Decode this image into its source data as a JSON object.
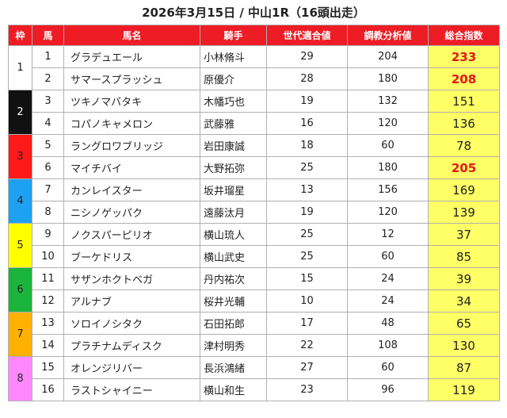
{
  "title": "2026年3月15日 / 中山1R（16頭出走）",
  "colors": {
    "header_bg": "#ee1c25",
    "score_bg": "#ffff66",
    "score_highlight": "#e8151b"
  },
  "headers": [
    "枠",
    "馬",
    "馬名",
    "騎手",
    "世代適合値",
    "調教分析値",
    "総合指数"
  ],
  "waku": [
    {
      "label": "1",
      "color": "#ffffff",
      "text_color": "#222222"
    },
    {
      "label": "2",
      "color": "#111111",
      "text_color": "#ffffff"
    },
    {
      "label": "3",
      "color": "#ff1a1a",
      "text_color": "#222222"
    },
    {
      "label": "4",
      "color": "#1ea1f2",
      "text_color": "#222222"
    },
    {
      "label": "5",
      "color": "#ffff00",
      "text_color": "#222222"
    },
    {
      "label": "6",
      "color": "#1bb53c",
      "text_color": "#222222"
    },
    {
      "label": "7",
      "color": "#ffb000",
      "text_color": "#222222"
    },
    {
      "label": "8",
      "color": "#ff88ff",
      "text_color": "#222222"
    }
  ],
  "rows": [
    {
      "num": "1",
      "name": "グラデュエール",
      "jockey": "小林脩斗",
      "gen": "29",
      "train": "204",
      "total": "233",
      "highlight": true
    },
    {
      "num": "2",
      "name": "サマースプラッシュ",
      "jockey": "原優介",
      "gen": "28",
      "train": "180",
      "total": "208",
      "highlight": true
    },
    {
      "num": "3",
      "name": "ツキノマバタキ",
      "jockey": "木幡巧也",
      "gen": "19",
      "train": "132",
      "total": "151",
      "highlight": false
    },
    {
      "num": "4",
      "name": "コパノキャメロン",
      "jockey": "武藤雅",
      "gen": "16",
      "train": "120",
      "total": "136",
      "highlight": false
    },
    {
      "num": "5",
      "name": "ラングロワブリッジ",
      "jockey": "岩田康誠",
      "gen": "18",
      "train": "60",
      "total": "78",
      "highlight": false
    },
    {
      "num": "6",
      "name": "マイチバイ",
      "jockey": "大野拓弥",
      "gen": "25",
      "train": "180",
      "total": "205",
      "highlight": true
    },
    {
      "num": "7",
      "name": "カンレイスター",
      "jockey": "坂井瑠星",
      "gen": "13",
      "train": "156",
      "total": "169",
      "highlight": false
    },
    {
      "num": "8",
      "name": "ニシノゲッパク",
      "jockey": "遠藤汰月",
      "gen": "19",
      "train": "120",
      "total": "139",
      "highlight": false
    },
    {
      "num": "9",
      "name": "ノクスパーピリオ",
      "jockey": "横山琉人",
      "gen": "25",
      "train": "12",
      "total": "37",
      "highlight": false
    },
    {
      "num": "10",
      "name": "ブーケドリス",
      "jockey": "横山武史",
      "gen": "25",
      "train": "60",
      "total": "85",
      "highlight": false
    },
    {
      "num": "11",
      "name": "サザンホクトベガ",
      "jockey": "丹内祐次",
      "gen": "15",
      "train": "24",
      "total": "39",
      "highlight": false
    },
    {
      "num": "12",
      "name": "アルナブ",
      "jockey": "桜井光輔",
      "gen": "10",
      "train": "24",
      "total": "34",
      "highlight": false
    },
    {
      "num": "13",
      "name": "ソロイノシタク",
      "jockey": "石田拓郎",
      "gen": "17",
      "train": "48",
      "total": "65",
      "highlight": false
    },
    {
      "num": "14",
      "name": "プラチナムディスク",
      "jockey": "津村明秀",
      "gen": "22",
      "train": "108",
      "total": "130",
      "highlight": false
    },
    {
      "num": "15",
      "name": "オレンジリバー",
      "jockey": "長浜鴻緒",
      "gen": "27",
      "train": "60",
      "total": "87",
      "highlight": false
    },
    {
      "num": "16",
      "name": "ラストシャイニー",
      "jockey": "横山和生",
      "gen": "23",
      "train": "96",
      "total": "119",
      "highlight": false
    }
  ]
}
